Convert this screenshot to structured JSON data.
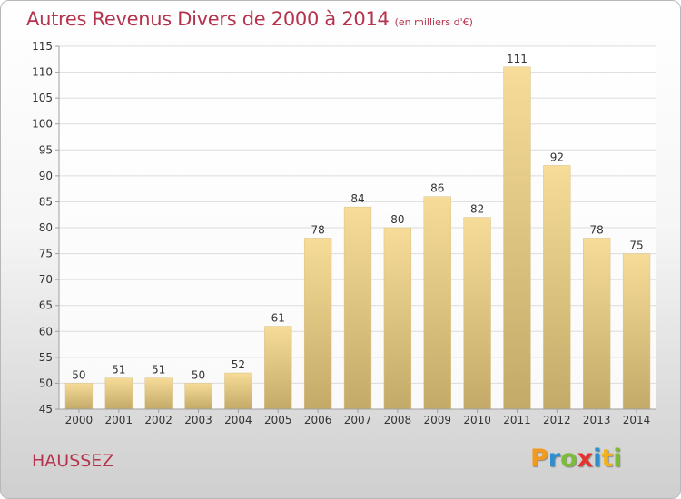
{
  "title": "Autres Revenus Divers de 2000 à 2014",
  "subtitle": "(en milliers d'€)",
  "place_label": "HAUSSEZ",
  "logo": {
    "letters": [
      "P",
      "r",
      "o",
      "x",
      "i",
      "t",
      "i"
    ],
    "colors": [
      "#f29a1f",
      "#2f8fce",
      "#7cbc3a",
      "#e5322d",
      "#2f8fce",
      "#f2b21c",
      "#7cbc3a"
    ]
  },
  "colors": {
    "title": "#b5334c",
    "bar_light": "#f6dc98",
    "bar_dark": "#c4aa68",
    "grid": "#dcdcdc"
  },
  "chart_data": {
    "type": "bar",
    "title": "Autres Revenus Divers de 2000 à 2014",
    "subtitle": "(en milliers d'€)",
    "categories": [
      "2000",
      "2001",
      "2002",
      "2003",
      "2004",
      "2005",
      "2006",
      "2007",
      "2008",
      "2009",
      "2010",
      "2011",
      "2012",
      "2013",
      "2014"
    ],
    "values": [
      50,
      51,
      51,
      50,
      52,
      61,
      78,
      84,
      80,
      86,
      82,
      111,
      92,
      78,
      75
    ],
    "data_labels": [
      "50",
      "51",
      "51",
      "50",
      "52",
      "61",
      "78",
      "84",
      "80",
      "86",
      "82",
      "111",
      "92",
      "78",
      "75"
    ],
    "ylim": [
      45,
      115
    ],
    "yticks": [
      "45",
      "50",
      "55",
      "60",
      "65",
      "70",
      "75",
      "80",
      "85",
      "90",
      "95",
      "100",
      "105",
      "110",
      "115"
    ],
    "ytick_values": [
      45,
      50,
      55,
      60,
      65,
      70,
      75,
      80,
      85,
      90,
      95,
      100,
      105,
      110,
      115
    ],
    "grid": true,
    "legend": "none"
  }
}
